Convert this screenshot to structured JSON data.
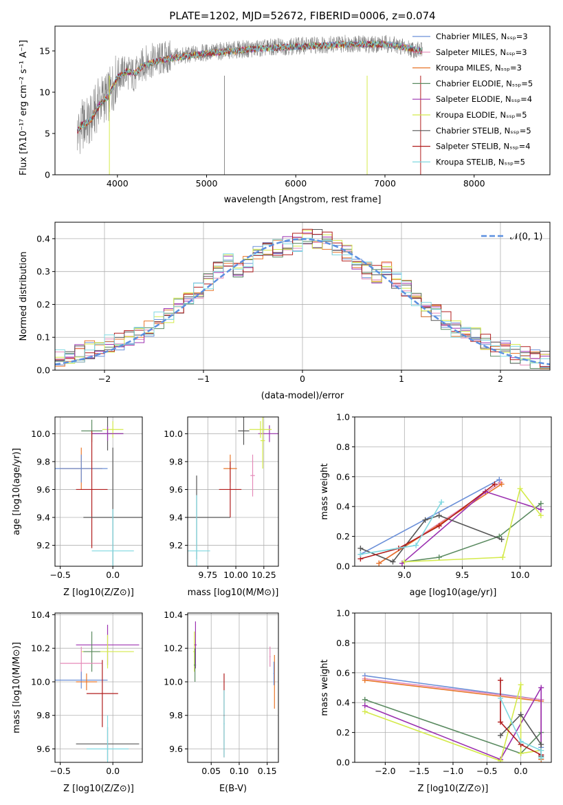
{
  "title": "PLATE=1202, MJD=52672, FIBERID=0006, z=0.074",
  "colors": {
    "chabrier_miles": "#6a8fd8",
    "salpeter_miles": "#e58ab8",
    "kroupa_miles": "#e8762a",
    "chabrier_elodie": "#5a8a60",
    "salpeter_elodie": "#9b30b0",
    "kroupa_elodie": "#d4ea4a",
    "chabrier_stelib": "#555555",
    "salpeter_stelib": "#b01c1c",
    "kroupa_stelib": "#7fd8e0",
    "data": "#808080",
    "gaussian": "#5b8fe0",
    "grid": "#b0b0b0"
  },
  "chart_data": [
    {
      "id": "spectrum",
      "type": "line",
      "title": "PLATE=1202, MJD=52672, FIBERID=0006, z=0.074",
      "xlabel": "wavelength [Angstrom, rest frame]",
      "ylabel": "Flux [f_λ 10^-17 erg cm^-2 s^-1 A^-1]",
      "xlim": [
        3300,
        8850
      ],
      "ylim": [
        0,
        18
      ],
      "xticks": [
        "4000",
        "5000",
        "6000",
        "7000",
        "8000"
      ],
      "yticks": [
        "0",
        "5",
        "10",
        "15"
      ],
      "legend_position": "right",
      "legend": [
        "Chabrier MILES, N_SSP=3",
        "Salpeter MILES, N_SSP=3",
        "Kroupa MILES, N_SSP=3",
        "Chabrier ELODIE, N_SSP=5",
        "Salpeter ELODIE, N_SSP=4",
        "Kroupa ELODIE, N_SSP=5",
        "Chabrier STELIB, N_SSP=5",
        "Salpeter STELIB, N_SSP=4",
        "Kroupa STELIB, N_SSP=5"
      ],
      "data_series": {
        "name": "data",
        "x": [
          3550,
          3600,
          3650,
          3700,
          3800,
          3900,
          4000,
          4100,
          4200,
          4300,
          4400,
          4500,
          4600,
          4800,
          5000,
          5200,
          5400,
          5600,
          5800,
          6000,
          6200,
          6400,
          6600,
          6800,
          7000,
          7200,
          7400
        ],
        "y": [
          5.0,
          6.0,
          6.3,
          6.5,
          9.0,
          9.5,
          12.0,
          12.5,
          12.0,
          13.5,
          13.8,
          14.0,
          14.2,
          14.5,
          14.8,
          15.0,
          15.2,
          15.3,
          15.5,
          15.6,
          15.7,
          15.8,
          15.9,
          15.8,
          15.9,
          15.5,
          15.0
        ]
      },
      "model_continuum": {
        "x": [
          3550,
          3600,
          3650,
          3700,
          3800,
          3900,
          4000,
          4100,
          4200,
          4300,
          4400,
          4500,
          4600,
          4800,
          5000,
          5200,
          5400,
          5600,
          5800,
          6000,
          6200,
          6400,
          6600,
          6800,
          7000,
          7200,
          7400
        ],
        "y": [
          5.2,
          6.0,
          6.3,
          6.6,
          8.5,
          9.5,
          11.8,
          12.5,
          12.3,
          13.3,
          13.6,
          13.9,
          14.1,
          14.4,
          14.7,
          14.9,
          15.1,
          15.3,
          15.4,
          15.5,
          15.6,
          15.7,
          15.8,
          15.8,
          15.8,
          15.5,
          15.0
        ]
      }
    },
    {
      "id": "residuals",
      "type": "line",
      "xlabel": "(data-model)/error",
      "ylabel": "Normed distribution",
      "xlim": [
        -2.5,
        2.5
      ],
      "ylim": [
        0,
        0.45
      ],
      "xticks": [
        "−2",
        "−1",
        "0",
        "1",
        "2"
      ],
      "yticks": [
        "0.0",
        "0.1",
        "0.2",
        "0.3",
        "0.4"
      ],
      "legend": [
        "𝒩(0, 1)"
      ],
      "legend_position": "top-right",
      "histogram_centers": [
        -2.45,
        -2.35,
        -2.25,
        -2.15,
        -2.05,
        -1.95,
        -1.85,
        -1.75,
        -1.65,
        -1.55,
        -1.45,
        -1.35,
        -1.25,
        -1.15,
        -1.05,
        -0.95,
        -0.85,
        -0.75,
        -0.65,
        -0.55,
        -0.45,
        -0.35,
        -0.25,
        -0.15,
        -0.05,
        0.05,
        0.15,
        0.25,
        0.35,
        0.45,
        0.55,
        0.65,
        0.75,
        0.85,
        0.95,
        1.05,
        1.15,
        1.25,
        1.35,
        1.45,
        1.55,
        1.65,
        1.75,
        1.85,
        1.95,
        2.05,
        2.15,
        2.25,
        2.35,
        2.45
      ],
      "histogram_mean": [
        0.035,
        0.045,
        0.05,
        0.06,
        0.065,
        0.08,
        0.09,
        0.1,
        0.11,
        0.13,
        0.15,
        0.17,
        0.2,
        0.22,
        0.24,
        0.27,
        0.3,
        0.33,
        0.3,
        0.32,
        0.35,
        0.36,
        0.37,
        0.38,
        0.39,
        0.4,
        0.4,
        0.39,
        0.37,
        0.36,
        0.33,
        0.3,
        0.29,
        0.3,
        0.27,
        0.25,
        0.22,
        0.19,
        0.17,
        0.15,
        0.13,
        0.12,
        0.1,
        0.09,
        0.07,
        0.065,
        0.05,
        0.045,
        0.035,
        0.03
      ]
    },
    {
      "id": "age_vs_Z",
      "type": "scatter",
      "xlabel": "Z [log10(Z/Z⊙)]",
      "ylabel": "age  [log10(age/yr)]",
      "xlim": [
        -0.55,
        0.28
      ],
      "ylim": [
        9.05,
        10.12
      ],
      "xticks": [
        "−0.5",
        "0.0"
      ],
      "yticks": [
        "9.2",
        "9.4",
        "9.6",
        "9.8",
        "10.0"
      ]
    },
    {
      "id": "age_vs_mass",
      "type": "scatter",
      "xlabel": "mass [log10(M/M⊙)]",
      "xlim": [
        9.57,
        10.38
      ],
      "ylim": [
        9.05,
        10.12
      ],
      "xticks": [
        "9.75",
        "10.00",
        "10.25"
      ],
      "yticks": [
        "9.2",
        "9.4",
        "9.6",
        "9.8",
        "10.0"
      ]
    },
    {
      "id": "weight_vs_age",
      "type": "line",
      "xlabel": "age  [log10(age/yr)]",
      "ylabel": "mass weight",
      "xlim": [
        8.57,
        10.27
      ],
      "ylim": [
        0,
        1.0
      ],
      "xticks": [
        "9.0",
        "9.5",
        "10.0"
      ],
      "yticks": [
        "0.0",
        "0.2",
        "0.4",
        "0.6",
        "0.8",
        "1.0"
      ],
      "series": [
        {
          "x": [
            8.62,
            9.82
          ],
          "y": [
            0.08,
            0.58
          ],
          "color": "chabrier_miles"
        },
        {
          "x": [
            8.78,
            9.83
          ],
          "y": [
            0.02,
            0.56
          ],
          "color": "salpeter_miles"
        },
        {
          "x": [
            8.78,
            9.84
          ],
          "y": [
            0.02,
            0.55
          ],
          "color": "kroupa_miles"
        },
        {
          "x": [
            9.0,
            9.3,
            9.82,
            10.18
          ],
          "y": [
            0.03,
            0.06,
            0.2,
            0.42
          ],
          "color": "chabrier_elodie"
        },
        {
          "x": [
            8.98,
            9.7,
            10.18
          ],
          "y": [
            0.02,
            0.5,
            0.38
          ],
          "color": "salpeter_elodie"
        },
        {
          "x": [
            9.0,
            9.85,
            10.0,
            10.18
          ],
          "y": [
            0.03,
            0.06,
            0.52,
            0.34
          ],
          "color": "kroupa_elodie"
        },
        {
          "x": [
            8.62,
            8.9,
            9.18,
            9.3,
            9.84
          ],
          "y": [
            0.12,
            0.03,
            0.31,
            0.34,
            0.18
          ],
          "color": "chabrier_stelib"
        },
        {
          "x": [
            8.62,
            8.95,
            9.3,
            9.78
          ],
          "y": [
            0.05,
            0.12,
            0.27,
            0.55
          ],
          "color": "salpeter_stelib"
        },
        {
          "x": [
            8.62,
            9.1,
            9.32
          ],
          "y": [
            0.08,
            0.14,
            0.43
          ],
          "color": "kroupa_stelib"
        }
      ]
    },
    {
      "id": "mass_vs_Z",
      "type": "scatter",
      "xlabel": "Z [log10(Z/Z⊙)]",
      "ylabel": "mass [log10(M/M⊙)]",
      "xlim": [
        -0.55,
        0.28
      ],
      "ylim": [
        9.52,
        10.41
      ],
      "xticks": [
        "−0.5",
        "0.0"
      ],
      "yticks": [
        "9.6",
        "9.8",
        "10.0",
        "10.2",
        "10.4"
      ]
    },
    {
      "id": "mass_vs_EBV",
      "type": "scatter",
      "xlabel": "E(B-V)",
      "xlim": [
        0.008,
        0.17
      ],
      "ylim": [
        9.52,
        10.41
      ],
      "xticks": [
        "0.05",
        "0.10",
        "0.15"
      ],
      "yticks": [
        "9.6",
        "9.8",
        "10.0",
        "10.2",
        "10.4"
      ]
    },
    {
      "id": "weight_vs_Z",
      "type": "line",
      "xlabel": "Z [log10(Z/Z⊙)]",
      "ylabel": "mass weight",
      "xlim": [
        -2.45,
        0.45
      ],
      "ylim": [
        0,
        1.0
      ],
      "xticks": [
        "−2.0",
        "−1.5",
        "−1.0",
        "−0.5",
        "0.0"
      ],
      "yticks": [
        "0.0",
        "0.2",
        "0.4",
        "0.6",
        "0.8",
        "1.0"
      ],
      "series": [
        {
          "x": [
            -2.3,
            0.3,
            0.3
          ],
          "y": [
            0.58,
            0.42,
            0.1
          ],
          "color": "chabrier_miles"
        },
        {
          "x": [
            -2.3,
            0.3,
            0.3
          ],
          "y": [
            0.56,
            0.42,
            0.02
          ],
          "color": "salpeter_miles"
        },
        {
          "x": [
            -2.3,
            0.3,
            0.3
          ],
          "y": [
            0.55,
            0.41,
            0.02
          ],
          "color": "kroupa_miles"
        },
        {
          "x": [
            -2.3,
            0.0,
            0.3,
            0.3
          ],
          "y": [
            0.42,
            0.06,
            0.2,
            0.03
          ],
          "color": "chabrier_elodie"
        },
        {
          "x": [
            -2.3,
            -0.3,
            0.3,
            0.3
          ],
          "y": [
            0.38,
            0.02,
            0.5,
            0.05
          ],
          "color": "salpeter_elodie"
        },
        {
          "x": [
            -2.3,
            -0.3,
            0.0,
            0.0,
            0.3
          ],
          "y": [
            0.34,
            0.01,
            0.52,
            0.06,
            0.08
          ],
          "color": "kroupa_elodie"
        },
        {
          "x": [
            -0.3,
            0.0,
            0.3,
            0.3
          ],
          "y": [
            0.18,
            0.32,
            0.12,
            0.04
          ],
          "color": "chabrier_stelib"
        },
        {
          "x": [
            -0.3,
            -0.3,
            0.0,
            0.3
          ],
          "y": [
            0.55,
            0.27,
            0.12,
            0.05
          ],
          "color": "salpeter_stelib"
        },
        {
          "x": [
            -0.3,
            0.0,
            0.3,
            0.3
          ],
          "y": [
            0.43,
            0.14,
            0.08,
            0.03
          ],
          "color": "kroupa_stelib"
        }
      ]
    }
  ]
}
